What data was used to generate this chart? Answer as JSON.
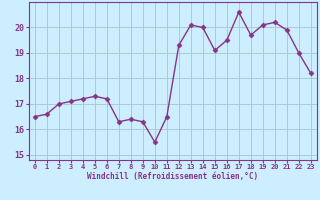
{
  "x": [
    0,
    1,
    2,
    3,
    4,
    5,
    6,
    7,
    8,
    9,
    10,
    11,
    12,
    13,
    14,
    15,
    16,
    17,
    18,
    19,
    20,
    21,
    22,
    23
  ],
  "y": [
    16.5,
    16.6,
    17.0,
    17.1,
    17.2,
    17.3,
    17.2,
    16.3,
    16.4,
    16.3,
    15.5,
    16.5,
    19.3,
    20.1,
    20.0,
    19.1,
    19.5,
    20.6,
    19.7,
    20.1,
    20.2,
    19.9,
    19.0,
    18.2
  ],
  "line_color": "#883388",
  "marker": "D",
  "markersize": 2.5,
  "linewidth": 1.0,
  "bg_color": "#cceeff",
  "grid_color": "#aacccc",
  "xlabel": "Windchill (Refroidissement éolien,°C)",
  "xlabel_color": "#883388",
  "tick_color": "#883388",
  "ylim": [
    14.8,
    21.0
  ],
  "xlim": [
    -0.5,
    23.5
  ],
  "yticks": [
    15,
    16,
    17,
    18,
    19,
    20
  ],
  "xticks": [
    0,
    1,
    2,
    3,
    4,
    5,
    6,
    7,
    8,
    9,
    10,
    11,
    12,
    13,
    14,
    15,
    16,
    17,
    18,
    19,
    20,
    21,
    22,
    23
  ]
}
